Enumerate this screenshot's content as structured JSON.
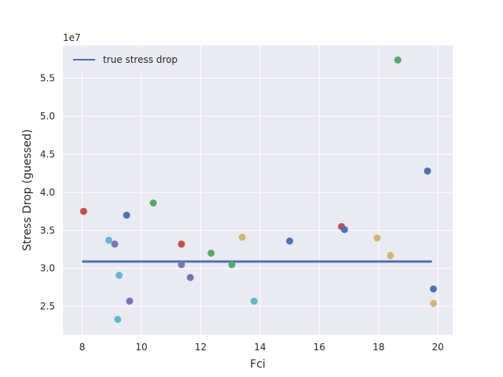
{
  "chart_data": {
    "type": "scatter",
    "title": "",
    "xlabel": "Fci",
    "ylabel": "Stress Drop (guessed)",
    "y_offset_label": "1e7",
    "xlim": [
      7.35,
      20.5
    ],
    "ylim": [
      2.13,
      5.93
    ],
    "x_ticks": [
      8,
      10,
      12,
      14,
      16,
      18,
      20
    ],
    "y_ticks": [
      2.5,
      3.0,
      3.5,
      4.0,
      4.5,
      5.0,
      5.5
    ],
    "y_tick_labels": [
      "2.5",
      "3.0",
      "3.5",
      "4.0",
      "4.5",
      "5.0",
      "5.5"
    ],
    "grid": true,
    "legend": {
      "placement": "top-left",
      "entries": [
        "true stress drop"
      ]
    },
    "line": {
      "name": "true stress drop",
      "color": "#4c72b0",
      "x": [
        8.0,
        19.8
      ],
      "y": [
        3.09,
        3.09
      ]
    },
    "points": [
      {
        "x": 8.05,
        "y": 3.75,
        "color": "#c44e52"
      },
      {
        "x": 8.9,
        "y": 3.37,
        "color": "#64b5cd"
      },
      {
        "x": 9.1,
        "y": 3.32,
        "color": "#8172b2"
      },
      {
        "x": 9.2,
        "y": 2.33,
        "color": "#64b5cd"
      },
      {
        "x": 9.25,
        "y": 2.91,
        "color": "#64b5cd"
      },
      {
        "x": 9.5,
        "y": 3.7,
        "color": "#4c72b0"
      },
      {
        "x": 9.6,
        "y": 2.57,
        "color": "#8172b2"
      },
      {
        "x": 10.4,
        "y": 3.86,
        "color": "#55a868"
      },
      {
        "x": 11.35,
        "y": 3.32,
        "color": "#c44e52"
      },
      {
        "x": 11.35,
        "y": 3.05,
        "color": "#8172b2"
      },
      {
        "x": 11.65,
        "y": 2.88,
        "color": "#8172b2"
      },
      {
        "x": 12.35,
        "y": 3.2,
        "color": "#55a868"
      },
      {
        "x": 13.05,
        "y": 3.05,
        "color": "#55a868"
      },
      {
        "x": 13.4,
        "y": 3.41,
        "color": "#ccb974"
      },
      {
        "x": 13.8,
        "y": 2.57,
        "color": "#64b5cd"
      },
      {
        "x": 15.0,
        "y": 3.36,
        "color": "#4c72b0"
      },
      {
        "x": 16.75,
        "y": 3.55,
        "color": "#c44e52"
      },
      {
        "x": 16.85,
        "y": 3.51,
        "color": "#4c72b0"
      },
      {
        "x": 17.95,
        "y": 3.4,
        "color": "#ccb974"
      },
      {
        "x": 18.4,
        "y": 3.17,
        "color": "#ccb974"
      },
      {
        "x": 18.65,
        "y": 5.74,
        "color": "#55a868"
      },
      {
        "x": 19.65,
        "y": 4.28,
        "color": "#4c72b0"
      },
      {
        "x": 19.85,
        "y": 2.73,
        "color": "#4c72b0"
      },
      {
        "x": 19.85,
        "y": 2.54,
        "color": "#ccb974"
      }
    ]
  }
}
